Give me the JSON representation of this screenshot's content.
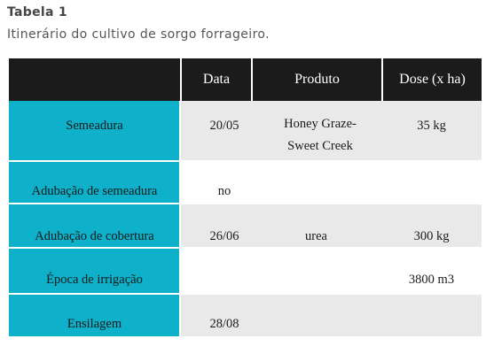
{
  "caption": {
    "label": "Tabela 1",
    "title": "Itinerário do cultivo de sorgo forrageiro."
  },
  "table": {
    "headers": [
      "",
      "Data",
      "Produto",
      "Dose (x ha)"
    ],
    "rows": [
      {
        "stage": "Semeadura",
        "date": "20/05",
        "product": "Honey Graze-Sweet Creek",
        "dose": "35 kg"
      },
      {
        "stage": "Adubação de semeadura",
        "date": "no",
        "product": "",
        "dose": ""
      },
      {
        "stage": "Adubação de cobertura",
        "date": "26/06",
        "product": "urea",
        "dose": "300 kg"
      },
      {
        "stage": "Época de irrigação",
        "date": "",
        "product": "",
        "dose": "3800 m3"
      },
      {
        "stage": "Ensilagem",
        "date": "28/08",
        "product": "",
        "dose": ""
      }
    ]
  },
  "colors": {
    "header_bg": "#1b1b1b",
    "accent": "#0fb0c9",
    "row_grey": "#e9e9e9"
  }
}
